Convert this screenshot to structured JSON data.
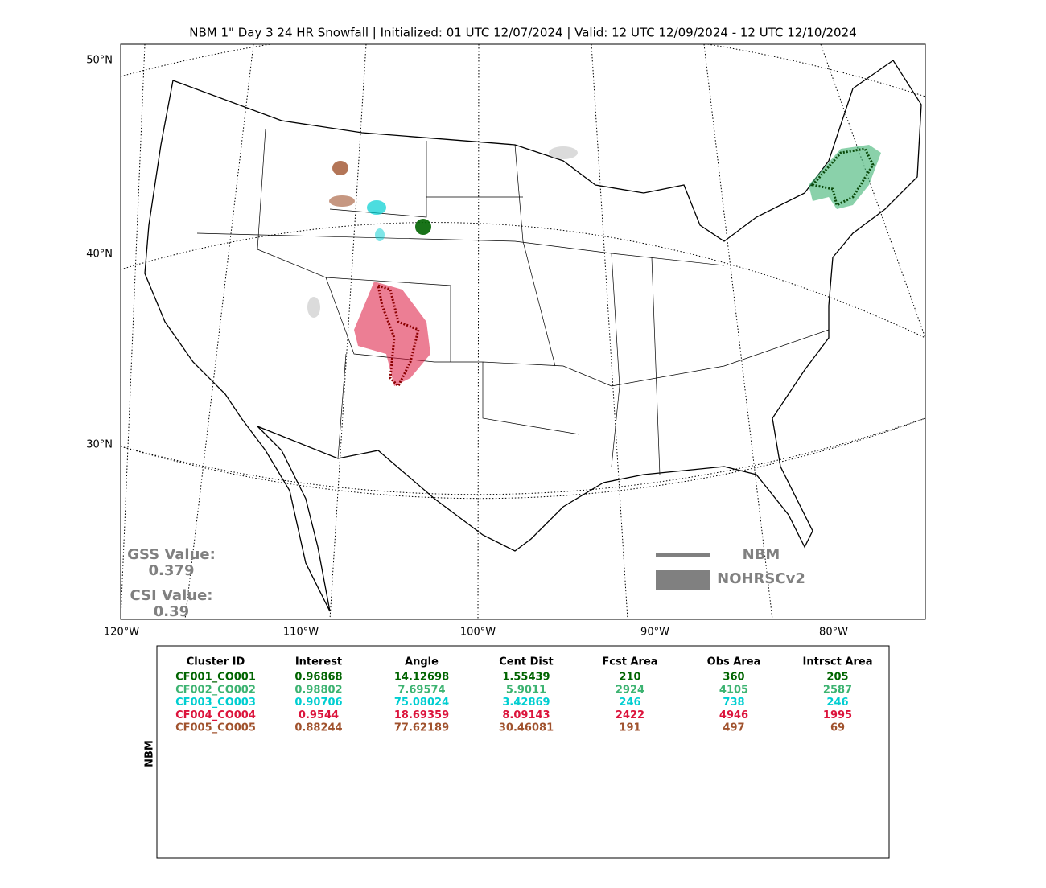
{
  "title": "NBM 1\" Day 3 24 HR Snowfall | Initialized: 01 UTC 12/07/2024 | Valid: 12 UTC 12/09/2024 - 12 UTC 12/10/2024",
  "map": {
    "lat_labels": [
      "50°N",
      "40°N",
      "30°N"
    ],
    "lon_labels": [
      "120°W",
      "110°W",
      "100°W",
      "90°W",
      "80°W"
    ]
  },
  "scores": {
    "gss_label": "GSS Value:",
    "gss_value": "0.379",
    "csi_label": "CSI Value:",
    "csi_value": "0.39"
  },
  "legend": {
    "items": [
      "NBM",
      "NOHRSCv2"
    ]
  },
  "table": {
    "side_label": "NBM",
    "headers": [
      "Cluster ID",
      "Interest",
      "Angle",
      "Cent Dist",
      "Fcst Area",
      "Obs Area",
      "Intrsct Area"
    ],
    "rows": [
      {
        "color": "#006400",
        "cells": [
          "CF001_CO001",
          "0.96868",
          "14.12698",
          "1.55439",
          "210",
          "360",
          "205"
        ]
      },
      {
        "color": "#3cb371",
        "cells": [
          "CF002_CO002",
          "0.98802",
          "7.69574",
          "5.9011",
          "2924",
          "4105",
          "2587"
        ]
      },
      {
        "color": "#00ced1",
        "cells": [
          "CF003_CO003",
          "0.90706",
          "75.08024",
          "3.42869",
          "246",
          "738",
          "246"
        ]
      },
      {
        "color": "#dc143c",
        "cells": [
          "CF004_CO004",
          "0.9544",
          "18.69359",
          "8.09143",
          "2422",
          "4946",
          "1995"
        ]
      },
      {
        "color": "#a0522d",
        "cells": [
          "CF005_CO005",
          "0.88244",
          "77.62189",
          "30.46081",
          "191",
          "497",
          "69"
        ]
      }
    ]
  }
}
